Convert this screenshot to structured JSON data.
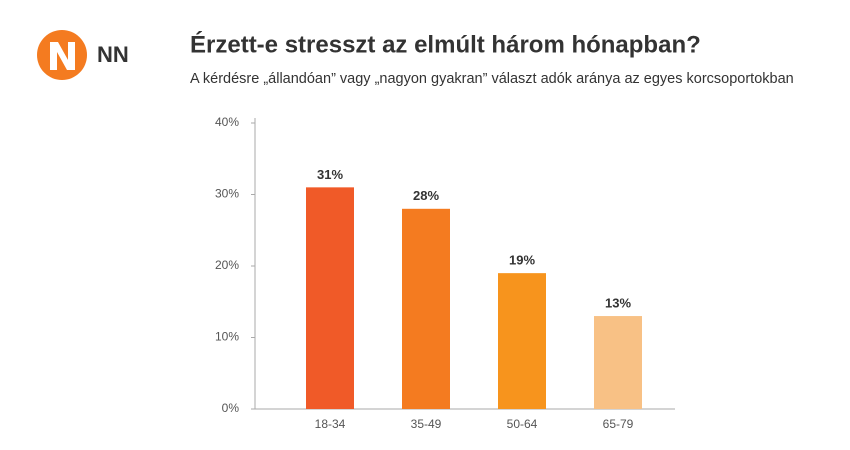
{
  "logo_text": "NN",
  "chart_data": {
    "type": "bar",
    "title": "Érzett-e stresszt az elmúlt három hónapban?",
    "subtitle": "A kérdésre „állandóan” vagy „nagyon gyakran” választ adók aránya az egyes korcsoportokban",
    "categories": [
      "18-34",
      "35-49",
      "50-64",
      "65-79"
    ],
    "values": [
      31,
      28,
      19,
      13
    ],
    "value_labels": [
      "31%",
      "28%",
      "19%",
      "13%"
    ],
    "colors": [
      "#f05a28",
      "#f47b20",
      "#f7941d",
      "#f8c185"
    ],
    "ylim": [
      0,
      40
    ],
    "yticks": [
      {
        "value": 0,
        "label": "0%"
      },
      {
        "value": 10,
        "label": "10%"
      },
      {
        "value": 20,
        "label": "20%"
      },
      {
        "value": 30,
        "label": "30%"
      },
      {
        "value": 40,
        "label": "40%"
      }
    ],
    "grid": false
  }
}
